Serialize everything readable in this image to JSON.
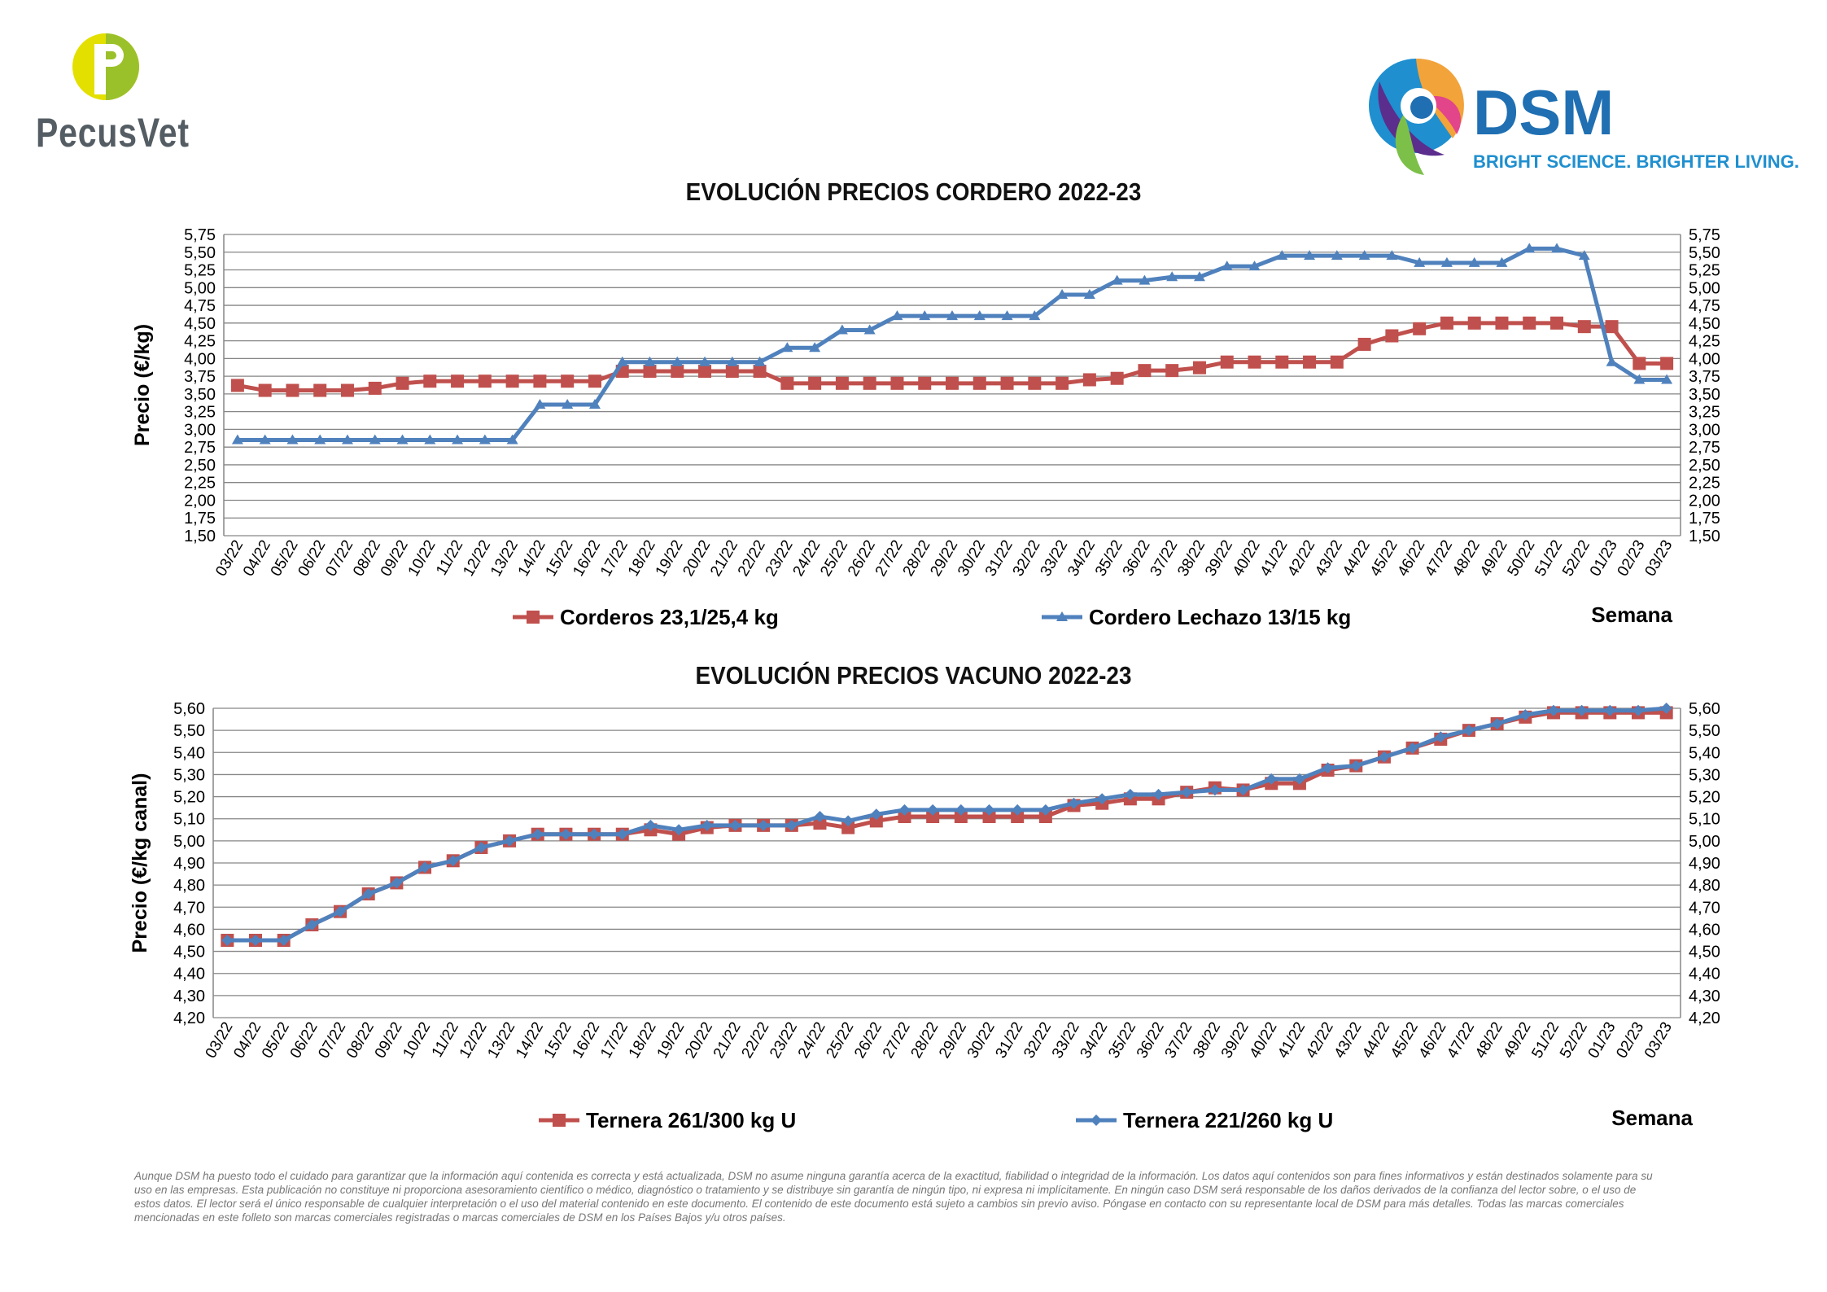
{
  "brand": {
    "pecusvet_name": "PecusVet",
    "dsm_name": "DSM",
    "dsm_tagline": "BRIGHT SCIENCE. BRIGHTER LIVING.",
    "colors": {
      "dsm_blue": "#1f6fb2",
      "pecus_green": "#9bc12a",
      "pecus_yellow": "#e3e000",
      "pecus_grey": "#545d63"
    }
  },
  "chart_data": [
    {
      "type": "line",
      "title": "EVOLUCIÓN PRECIOS CORDERO 2022-23",
      "ylabel": "Precio (€/kg)",
      "xlabel": "Semana",
      "ylim": [
        1.5,
        5.75
      ],
      "ytick_step": 0.25,
      "grid": true,
      "legend_position": "bottom",
      "categories": [
        "03/22",
        "04/22",
        "05/22",
        "06/22",
        "07/22",
        "08/22",
        "09/22",
        "10/22",
        "11/22",
        "12/22",
        "13/22",
        "14/22",
        "15/22",
        "16/22",
        "17/22",
        "18/22",
        "19/22",
        "20/22",
        "21/22",
        "22/22",
        "23/22",
        "24/22",
        "25/22",
        "26/22",
        "27/22",
        "28/22",
        "29/22",
        "30/22",
        "31/22",
        "32/22",
        "33/22",
        "34/22",
        "35/22",
        "36/22",
        "37/22",
        "38/22",
        "39/22",
        "40/22",
        "41/22",
        "42/22",
        "43/22",
        "44/22",
        "45/22",
        "46/22",
        "47/22",
        "48/22",
        "49/22",
        "50/22",
        "51/22",
        "52/22",
        "01/23",
        "02/23",
        "03/23"
      ],
      "series": [
        {
          "name": "Corderos 23,1/25,4 kg",
          "color": "#c0504d",
          "marker": "square",
          "values": [
            3.62,
            3.55,
            3.55,
            3.55,
            3.55,
            3.58,
            3.65,
            3.68,
            3.68,
            3.68,
            3.68,
            3.68,
            3.68,
            3.68,
            3.82,
            3.82,
            3.82,
            3.82,
            3.82,
            3.82,
            3.65,
            3.65,
            3.65,
            3.65,
            3.65,
            3.65,
            3.65,
            3.65,
            3.65,
            3.65,
            3.65,
            3.7,
            3.72,
            3.83,
            3.83,
            3.87,
            3.95,
            3.95,
            3.95,
            3.95,
            3.95,
            4.2,
            4.32,
            4.42,
            4.5,
            4.5,
            4.5,
            4.5,
            4.5,
            4.45,
            4.45,
            3.93,
            3.93
          ]
        },
        {
          "name": "Cordero Lechazo 13/15 kg",
          "color": "#4f81bd",
          "marker": "triangle",
          "values": [
            2.85,
            2.85,
            2.85,
            2.85,
            2.85,
            2.85,
            2.85,
            2.85,
            2.85,
            2.85,
            2.85,
            3.35,
            3.35,
            3.35,
            3.95,
            3.95,
            3.95,
            3.95,
            3.95,
            3.95,
            4.15,
            4.15,
            4.4,
            4.4,
            4.6,
            4.6,
            4.6,
            4.6,
            4.6,
            4.6,
            4.9,
            4.9,
            5.1,
            5.1,
            5.15,
            5.15,
            5.3,
            5.3,
            5.45,
            5.45,
            5.45,
            5.45,
            5.45,
            5.35,
            5.35,
            5.35,
            5.35,
            5.55,
            5.55,
            5.45,
            3.95,
            3.7,
            3.7
          ]
        }
      ]
    },
    {
      "type": "line",
      "title": "EVOLUCIÓN PRECIOS VACUNO 2022-23",
      "ylabel": "Precio (€/kg canal)",
      "xlabel": "Semana",
      "ylim": [
        4.2,
        5.6
      ],
      "ytick_step": 0.1,
      "grid": true,
      "legend_position": "bottom",
      "categories": [
        "03/22",
        "04/22",
        "05/22",
        "06/22",
        "07/22",
        "08/22",
        "09/22",
        "10/22",
        "11/22",
        "12/22",
        "13/22",
        "14/22",
        "15/22",
        "16/22",
        "17/22",
        "18/22",
        "19/22",
        "20/22",
        "21/22",
        "22/22",
        "23/22",
        "24/22",
        "25/22",
        "26/22",
        "27/22",
        "28/22",
        "29/22",
        "30/22",
        "31/22",
        "32/22",
        "33/22",
        "34/22",
        "35/22",
        "36/22",
        "37/22",
        "38/22",
        "39/22",
        "40/22",
        "41/22",
        "42/22",
        "43/22",
        "44/22",
        "45/22",
        "46/22",
        "47/22",
        "48/22",
        "49/22",
        "51/22",
        "52/22",
        "01/23",
        "02/23",
        "03/23"
      ],
      "series": [
        {
          "name": "Ternera 261/300 kg U",
          "color": "#c0504d",
          "marker": "square",
          "values": [
            4.55,
            4.55,
            4.55,
            4.62,
            4.68,
            4.76,
            4.81,
            4.88,
            4.91,
            4.97,
            5.0,
            5.03,
            5.03,
            5.03,
            5.03,
            5.05,
            5.03,
            5.06,
            5.07,
            5.07,
            5.07,
            5.08,
            5.06,
            5.09,
            5.11,
            5.11,
            5.11,
            5.11,
            5.11,
            5.11,
            5.16,
            5.17,
            5.19,
            5.19,
            5.22,
            5.24,
            5.23,
            5.26,
            5.26,
            5.32,
            5.34,
            5.38,
            5.42,
            5.46,
            5.5,
            5.53,
            5.56,
            5.58,
            5.58,
            5.58,
            5.58,
            5.58
          ]
        },
        {
          "name": "Ternera 221/260 kg U",
          "color": "#4f81bd",
          "marker": "diamond",
          "values": [
            4.55,
            4.55,
            4.55,
            4.62,
            4.68,
            4.76,
            4.81,
            4.88,
            4.91,
            4.97,
            5.0,
            5.03,
            5.03,
            5.03,
            5.03,
            5.07,
            5.05,
            5.07,
            5.07,
            5.07,
            5.07,
            5.11,
            5.09,
            5.12,
            5.14,
            5.14,
            5.14,
            5.14,
            5.14,
            5.14,
            5.17,
            5.19,
            5.21,
            5.21,
            5.22,
            5.23,
            5.23,
            5.28,
            5.28,
            5.33,
            5.34,
            5.38,
            5.42,
            5.47,
            5.5,
            5.53,
            5.57,
            5.59,
            5.59,
            5.59,
            5.59,
            5.6
          ]
        }
      ]
    }
  ],
  "disclaimer": "Aunque DSM ha puesto todo el cuidado para garantizar que la información aquí contenida es correcta y está actualizada, DSM no asume ninguna garantía acerca de la exactitud, fiabilidad o integridad de la información. Los datos aquí contenidos son para fines informativos y están destinados solamente para su uso en las empresas. Esta publicación no constituye ni proporciona asesoramiento científico o médico, diagnóstico o tratamiento y se distribuye sin garantía de ningún tipo, ni expresa ni implícitamente. En ningún caso DSM será responsable de los daños derivados de la confianza del lector sobre, o el uso de estos datos. El lector será el único responsable de cualquier interpretación o el uso del material contenido en este documento. El contenido de este documento está sujeto a cambios sin previo aviso. Póngase en contacto con su representante local de DSM para más detalles. Todas las marcas comerciales mencionadas en este folleto son marcas comerciales registradas o marcas comerciales de DSM en los Países Bajos y/u otros países."
}
